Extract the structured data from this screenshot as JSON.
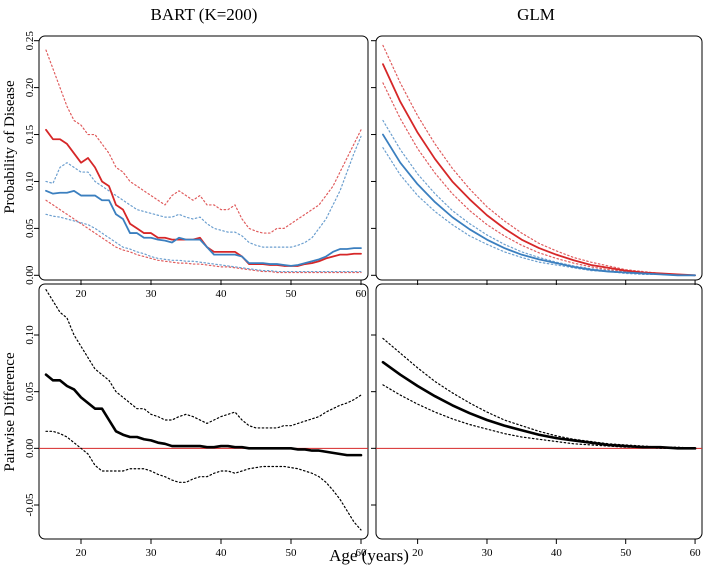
{
  "figure": {
    "xlabel": "Age (years)",
    "col_titles": [
      "BART (K=200)",
      "GLM"
    ],
    "row_labels": [
      "Probability of Disease",
      "Pairwise Difference"
    ],
    "x_ticks": [
      20,
      30,
      40,
      50,
      60
    ],
    "xlim": [
      14,
      61
    ]
  },
  "chart_data": [
    {
      "type": "line",
      "title": "BART (K=200)",
      "xlabel": "",
      "ylabel": "Probability of Disease",
      "ylim": [
        -0.005,
        0.255
      ],
      "y_ticks": [
        "0.00",
        "0.05",
        "0.10",
        "0.15",
        "0.20",
        "0.25"
      ],
      "colors": {
        "red": "#d62728",
        "blue": "#3b7fbf"
      },
      "x": [
        15,
        16,
        17,
        18,
        19,
        20,
        21,
        22,
        23,
        24,
        25,
        26,
        27,
        28,
        29,
        30,
        31,
        32,
        33,
        34,
        35,
        36,
        37,
        38,
        39,
        40,
        41,
        42,
        43,
        44,
        45,
        46,
        47,
        48,
        49,
        50,
        51,
        52,
        53,
        54,
        55,
        56,
        57,
        58,
        59,
        60
      ],
      "series": [
        {
          "color": "red",
          "style": "solid",
          "values": [
            0.155,
            0.145,
            0.145,
            0.14,
            0.13,
            0.12,
            0.125,
            0.115,
            0.1,
            0.095,
            0.075,
            0.07,
            0.055,
            0.05,
            0.045,
            0.045,
            0.04,
            0.04,
            0.038,
            0.038,
            0.038,
            0.038,
            0.04,
            0.03,
            0.025,
            0.025,
            0.025,
            0.025,
            0.02,
            0.012,
            0.012,
            0.012,
            0.011,
            0.011,
            0.01,
            0.01,
            0.01,
            0.012,
            0.013,
            0.015,
            0.018,
            0.02,
            0.022,
            0.022,
            0.023,
            0.023
          ]
        },
        {
          "color": "blue",
          "style": "solid",
          "values": [
            0.09,
            0.087,
            0.088,
            0.088,
            0.09,
            0.085,
            0.085,
            0.085,
            0.08,
            0.08,
            0.065,
            0.06,
            0.045,
            0.045,
            0.04,
            0.04,
            0.038,
            0.037,
            0.035,
            0.04,
            0.038,
            0.038,
            0.038,
            0.03,
            0.022,
            0.022,
            0.022,
            0.022,
            0.02,
            0.013,
            0.013,
            0.013,
            0.012,
            0.012,
            0.011,
            0.01,
            0.011,
            0.013,
            0.015,
            0.017,
            0.02,
            0.025,
            0.028,
            0.028,
            0.029,
            0.029
          ]
        },
        {
          "color": "red",
          "style": "dotted",
          "values": [
            0.24,
            0.22,
            0.2,
            0.18,
            0.165,
            0.16,
            0.15,
            0.15,
            0.14,
            0.13,
            0.115,
            0.11,
            0.1,
            0.095,
            0.09,
            0.085,
            0.08,
            0.075,
            0.085,
            0.09,
            0.085,
            0.08,
            0.085,
            0.075,
            0.075,
            0.07,
            0.07,
            0.075,
            0.06,
            0.05,
            0.047,
            0.045,
            0.045,
            0.05,
            0.05,
            0.055,
            0.06,
            0.065,
            0.07,
            0.075,
            0.085,
            0.095,
            0.11,
            0.125,
            0.14,
            0.155
          ]
        },
        {
          "color": "red",
          "style": "dotted",
          "values": [
            0.08,
            0.075,
            0.07,
            0.065,
            0.06,
            0.055,
            0.05,
            0.045,
            0.04,
            0.035,
            0.03,
            0.027,
            0.025,
            0.022,
            0.02,
            0.018,
            0.016,
            0.015,
            0.014,
            0.013,
            0.013,
            0.012,
            0.012,
            0.011,
            0.01,
            0.009,
            0.009,
            0.008,
            0.007,
            0.006,
            0.005,
            0.004,
            0.004,
            0.003,
            0.003,
            0.003,
            0.003,
            0.003,
            0.003,
            0.003,
            0.003,
            0.003,
            0.003,
            0.003,
            0.003,
            0.003
          ]
        },
        {
          "color": "blue",
          "style": "dotted",
          "values": [
            0.1,
            0.098,
            0.115,
            0.12,
            0.115,
            0.11,
            0.11,
            0.1,
            0.095,
            0.09,
            0.085,
            0.08,
            0.075,
            0.07,
            0.068,
            0.066,
            0.064,
            0.062,
            0.062,
            0.065,
            0.062,
            0.06,
            0.062,
            0.055,
            0.05,
            0.048,
            0.046,
            0.046,
            0.042,
            0.035,
            0.032,
            0.03,
            0.03,
            0.03,
            0.03,
            0.03,
            0.032,
            0.035,
            0.04,
            0.05,
            0.06,
            0.075,
            0.09,
            0.11,
            0.13,
            0.148
          ]
        },
        {
          "color": "blue",
          "style": "dotted",
          "values": [
            0.065,
            0.063,
            0.062,
            0.06,
            0.058,
            0.056,
            0.054,
            0.05,
            0.045,
            0.04,
            0.035,
            0.03,
            0.028,
            0.025,
            0.023,
            0.02,
            0.018,
            0.017,
            0.016,
            0.016,
            0.015,
            0.015,
            0.014,
            0.013,
            0.012,
            0.011,
            0.01,
            0.009,
            0.008,
            0.007,
            0.006,
            0.005,
            0.005,
            0.004,
            0.004,
            0.004,
            0.004,
            0.004,
            0.004,
            0.004,
            0.004,
            0.004,
            0.004,
            0.004,
            0.004,
            0.004
          ]
        }
      ]
    },
    {
      "type": "line",
      "title": "GLM",
      "xlabel": "",
      "ylabel": "",
      "ylim": [
        -0.005,
        0.255
      ],
      "colors": {
        "red": "#d62728",
        "blue": "#3b7fbf"
      },
      "x": [
        15,
        17.5,
        20,
        22.5,
        25,
        27.5,
        30,
        32.5,
        35,
        37.5,
        40,
        42.5,
        45,
        47.5,
        50,
        52.5,
        55,
        57.5,
        60
      ],
      "series": [
        {
          "color": "red",
          "style": "solid",
          "values": [
            0.225,
            0.185,
            0.152,
            0.124,
            0.1,
            0.081,
            0.064,
            0.05,
            0.038,
            0.029,
            0.022,
            0.016,
            0.011,
            0.008,
            0.005,
            0.003,
            0.002,
            0.001,
            0.0
          ]
        },
        {
          "color": "blue",
          "style": "solid",
          "values": [
            0.15,
            0.12,
            0.097,
            0.078,
            0.062,
            0.049,
            0.038,
            0.029,
            0.022,
            0.017,
            0.013,
            0.009,
            0.006,
            0.004,
            0.003,
            0.002,
            0.001,
            0.0,
            0.0
          ]
        },
        {
          "color": "red",
          "style": "dotted",
          "values": [
            0.245,
            0.205,
            0.17,
            0.14,
            0.114,
            0.092,
            0.073,
            0.058,
            0.045,
            0.034,
            0.026,
            0.019,
            0.014,
            0.01,
            0.006,
            0.004,
            0.002,
            0.001,
            0.0
          ]
        },
        {
          "color": "red",
          "style": "dotted",
          "values": [
            0.205,
            0.167,
            0.135,
            0.109,
            0.087,
            0.069,
            0.054,
            0.042,
            0.032,
            0.024,
            0.018,
            0.013,
            0.009,
            0.006,
            0.004,
            0.002,
            0.001,
            0.001,
            0.0
          ]
        },
        {
          "color": "blue",
          "style": "dotted",
          "values": [
            0.165,
            0.134,
            0.108,
            0.087,
            0.069,
            0.055,
            0.043,
            0.033,
            0.025,
            0.019,
            0.014,
            0.01,
            0.007,
            0.005,
            0.003,
            0.002,
            0.001,
            0.0,
            0.0
          ]
        },
        {
          "color": "blue",
          "style": "dotted",
          "values": [
            0.136,
            0.107,
            0.085,
            0.068,
            0.054,
            0.042,
            0.033,
            0.025,
            0.019,
            0.014,
            0.011,
            0.008,
            0.005,
            0.004,
            0.002,
            0.001,
            0.001,
            0.0,
            0.0
          ]
        }
      ]
    },
    {
      "type": "line",
      "title": "",
      "xlabel": "Age (years)",
      "ylabel": "Pairwise Difference",
      "ylim": [
        -0.08,
        0.145
      ],
      "y_ticks": [
        "-0.05",
        "0.00",
        "0.05",
        "0.10"
      ],
      "reference_line": {
        "y": 0,
        "color": "#d62728"
      },
      "x": [
        15,
        16,
        17,
        18,
        19,
        20,
        21,
        22,
        23,
        24,
        25,
        26,
        27,
        28,
        29,
        30,
        31,
        32,
        33,
        34,
        35,
        36,
        37,
        38,
        39,
        40,
        41,
        42,
        43,
        44,
        45,
        46,
        47,
        48,
        49,
        50,
        51,
        52,
        53,
        54,
        55,
        56,
        57,
        58,
        59,
        60
      ],
      "series": [
        {
          "color": "black",
          "style": "solid",
          "values": [
            0.065,
            0.06,
            0.06,
            0.055,
            0.052,
            0.045,
            0.04,
            0.035,
            0.035,
            0.025,
            0.015,
            0.012,
            0.01,
            0.01,
            0.008,
            0.007,
            0.005,
            0.004,
            0.002,
            0.002,
            0.002,
            0.002,
            0.002,
            0.001,
            0.001,
            0.002,
            0.002,
            0.001,
            0.001,
            0.0,
            0.0,
            0.0,
            0.0,
            0.0,
            0.0,
            0.0,
            -0.001,
            -0.001,
            -0.002,
            -0.002,
            -0.003,
            -0.004,
            -0.005,
            -0.006,
            -0.006,
            -0.006
          ]
        },
        {
          "color": "black",
          "style": "dotted",
          "values": [
            0.14,
            0.13,
            0.12,
            0.115,
            0.1,
            0.09,
            0.08,
            0.07,
            0.065,
            0.06,
            0.05,
            0.045,
            0.04,
            0.035,
            0.035,
            0.03,
            0.028,
            0.025,
            0.025,
            0.028,
            0.03,
            0.028,
            0.025,
            0.022,
            0.025,
            0.028,
            0.03,
            0.032,
            0.025,
            0.02,
            0.018,
            0.018,
            0.018,
            0.018,
            0.02,
            0.02,
            0.022,
            0.024,
            0.026,
            0.028,
            0.032,
            0.035,
            0.038,
            0.04,
            0.043,
            0.047
          ]
        },
        {
          "color": "black",
          "style": "dotted",
          "values": [
            0.015,
            0.015,
            0.013,
            0.01,
            0.005,
            0.0,
            -0.005,
            -0.015,
            -0.02,
            -0.02,
            -0.02,
            -0.02,
            -0.018,
            -0.018,
            -0.018,
            -0.02,
            -0.023,
            -0.025,
            -0.028,
            -0.03,
            -0.03,
            -0.027,
            -0.025,
            -0.025,
            -0.022,
            -0.02,
            -0.02,
            -0.022,
            -0.02,
            -0.018,
            -0.017,
            -0.016,
            -0.016,
            -0.016,
            -0.016,
            -0.017,
            -0.018,
            -0.02,
            -0.022,
            -0.025,
            -0.03,
            -0.037,
            -0.045,
            -0.055,
            -0.065,
            -0.072
          ]
        }
      ]
    },
    {
      "type": "line",
      "title": "",
      "xlabel": "Age (years)",
      "ylabel": "",
      "ylim": [
        -0.08,
        0.145
      ],
      "reference_line": {
        "y": 0,
        "color": "#d62728"
      },
      "x": [
        15,
        17.5,
        20,
        22.5,
        25,
        27.5,
        30,
        32.5,
        35,
        37.5,
        40,
        42.5,
        45,
        47.5,
        50,
        52.5,
        55,
        57.5,
        60
      ],
      "series": [
        {
          "color": "black",
          "style": "solid",
          "values": [
            0.076,
            0.065,
            0.055,
            0.046,
            0.038,
            0.031,
            0.025,
            0.02,
            0.016,
            0.012,
            0.009,
            0.007,
            0.005,
            0.003,
            0.002,
            0.001,
            0.001,
            0.0,
            0.0
          ]
        },
        {
          "color": "black",
          "style": "dotted",
          "values": [
            0.097,
            0.084,
            0.071,
            0.059,
            0.049,
            0.04,
            0.032,
            0.025,
            0.02,
            0.015,
            0.011,
            0.008,
            0.006,
            0.004,
            0.003,
            0.002,
            0.001,
            0.001,
            0.0
          ]
        },
        {
          "color": "black",
          "style": "dotted",
          "values": [
            0.056,
            0.047,
            0.039,
            0.032,
            0.026,
            0.021,
            0.017,
            0.013,
            0.01,
            0.008,
            0.006,
            0.004,
            0.003,
            0.002,
            0.001,
            0.001,
            0.0,
            0.0,
            0.0
          ]
        }
      ]
    }
  ]
}
